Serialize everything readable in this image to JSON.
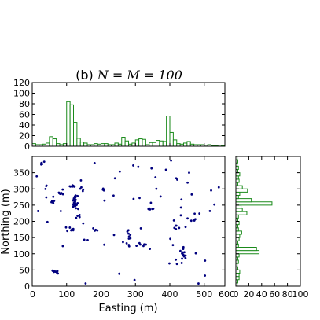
{
  "figure": {
    "title": "(b) N = M = 100",
    "title_prefix": "(b) ",
    "title_math": "N = M = 100"
  },
  "colors": {
    "histogram_edge": "#1a8a1a",
    "histogram_fill": "#ffffff",
    "points": "#00007f",
    "frame": "#000000"
  },
  "chart_data": [
    {
      "type": "histogram",
      "name": "top-histogram",
      "xlabel": "",
      "ylabel": "",
      "xlim": [
        0,
        560
      ],
      "ylim": [
        0,
        120
      ],
      "yticks": [
        "0",
        "20",
        "40",
        "60",
        "80",
        "100",
        "120"
      ],
      "bin_width": 10,
      "x_start": 0,
      "counts": [
        5,
        3,
        3,
        4,
        6,
        18,
        14,
        5,
        3,
        5,
        84,
        78,
        45,
        15,
        8,
        6,
        3,
        3,
        5,
        4,
        5,
        5,
        3,
        3,
        6,
        4,
        17,
        10,
        4,
        6,
        12,
        14,
        13,
        3,
        7,
        7,
        11,
        10,
        9,
        57,
        26,
        12,
        5,
        4,
        6,
        9,
        4,
        3,
        3,
        3,
        2,
        3,
        1,
        1,
        2,
        1
      ]
    },
    {
      "type": "scatter",
      "name": "main-scatter",
      "xlabel": "Easting (m)",
      "ylabel": "Northing (m)",
      "xlim": [
        0,
        560
      ],
      "ylim": [
        0,
        400
      ],
      "xticks": [
        "0",
        "100",
        "200",
        "300",
        "400",
        "500",
        "600"
      ],
      "yticks": [
        "0",
        "50",
        "100",
        "150",
        "200",
        "250",
        "300",
        "350"
      ],
      "marker": "dot"
    },
    {
      "type": "histogram",
      "orientation": "horizontal",
      "name": "right-histogram",
      "xlabel": "",
      "ylabel": "",
      "xlim": [
        0,
        100
      ],
      "ylim": [
        0,
        400
      ],
      "xticks": [
        "0",
        "20",
        "40",
        "60",
        "80",
        "100"
      ],
      "bin_width": 10,
      "y_start": 0,
      "counts": [
        2,
        3,
        5,
        5,
        6,
        3,
        2,
        4,
        3,
        5,
        36,
        32,
        4,
        3,
        5,
        6,
        9,
        4,
        3,
        5,
        3,
        4,
        17,
        10,
        8,
        56,
        24,
        4,
        6,
        18,
        10,
        3,
        5,
        4,
        6,
        3,
        4,
        2,
        3,
        2
      ]
    }
  ]
}
